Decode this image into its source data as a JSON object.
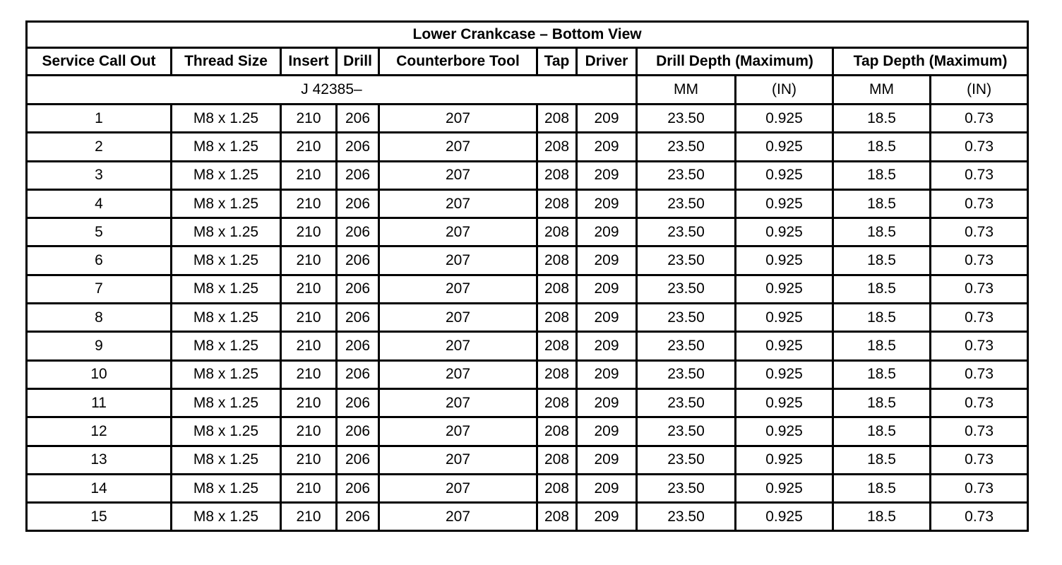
{
  "title": "Lower Crankcase – Bottom View",
  "headers": [
    "Service Call Out",
    "Thread Size",
    "Insert",
    "Drill",
    "Counterbore Tool",
    "Tap",
    "Driver",
    "Drill Depth (Maximum)",
    "Tap Depth (Maximum)"
  ],
  "tool_prefix": "J 42385–",
  "units": [
    "MM",
    "(IN)",
    "MM",
    "(IN)"
  ],
  "rows": [
    [
      "1",
      "M8 x 1.25",
      "210",
      "206",
      "207",
      "208",
      "209",
      "23.50",
      "0.925",
      "18.5",
      "0.73"
    ],
    [
      "2",
      "M8 x 1.25",
      "210",
      "206",
      "207",
      "208",
      "209",
      "23.50",
      "0.925",
      "18.5",
      "0.73"
    ],
    [
      "3",
      "M8 x 1.25",
      "210",
      "206",
      "207",
      "208",
      "209",
      "23.50",
      "0.925",
      "18.5",
      "0.73"
    ],
    [
      "4",
      "M8 x 1.25",
      "210",
      "206",
      "207",
      "208",
      "209",
      "23.50",
      "0.925",
      "18.5",
      "0.73"
    ],
    [
      "5",
      "M8 x 1.25",
      "210",
      "206",
      "207",
      "208",
      "209",
      "23.50",
      "0.925",
      "18.5",
      "0.73"
    ],
    [
      "6",
      "M8 x 1.25",
      "210",
      "206",
      "207",
      "208",
      "209",
      "23.50",
      "0.925",
      "18.5",
      "0.73"
    ],
    [
      "7",
      "M8 x 1.25",
      "210",
      "206",
      "207",
      "208",
      "209",
      "23.50",
      "0.925",
      "18.5",
      "0.73"
    ],
    [
      "8",
      "M8 x 1.25",
      "210",
      "206",
      "207",
      "208",
      "209",
      "23.50",
      "0.925",
      "18.5",
      "0.73"
    ],
    [
      "9",
      "M8 x 1.25",
      "210",
      "206",
      "207",
      "208",
      "209",
      "23.50",
      "0.925",
      "18.5",
      "0.73"
    ],
    [
      "10",
      "M8 x 1.25",
      "210",
      "206",
      "207",
      "208",
      "209",
      "23.50",
      "0.925",
      "18.5",
      "0.73"
    ],
    [
      "11",
      "M8 x 1.25",
      "210",
      "206",
      "207",
      "208",
      "209",
      "23.50",
      "0.925",
      "18.5",
      "0.73"
    ],
    [
      "12",
      "M8 x 1.25",
      "210",
      "206",
      "207",
      "208",
      "209",
      "23.50",
      "0.925",
      "18.5",
      "0.73"
    ],
    [
      "13",
      "M8 x 1.25",
      "210",
      "206",
      "207",
      "208",
      "209",
      "23.50",
      "0.925",
      "18.5",
      "0.73"
    ],
    [
      "14",
      "M8 x 1.25",
      "210",
      "206",
      "207",
      "208",
      "209",
      "23.50",
      "0.925",
      "18.5",
      "0.73"
    ],
    [
      "15",
      "M8 x 1.25",
      "210",
      "206",
      "207",
      "208",
      "209",
      "23.50",
      "0.925",
      "18.5",
      "0.73"
    ]
  ]
}
